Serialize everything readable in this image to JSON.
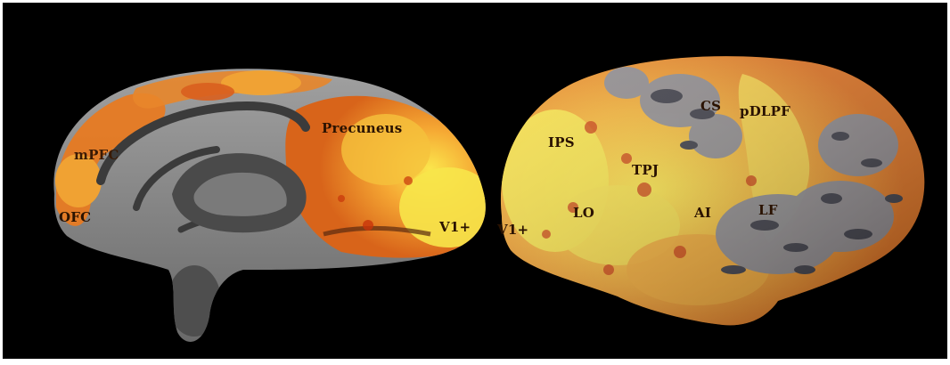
{
  "colors": {
    "background": "#000000",
    "frame": "#ffffff",
    "cortex_light": "#8f8f8f",
    "sulcus_dark": "#3a3a3a",
    "activation_red": "#c8340a",
    "activation_orange": "#f2902a",
    "activation_yellow": "#f5e84a",
    "label_dark": "#2a1200",
    "label_light": "#ffe9a8"
  },
  "figure": {
    "medial_view": {
      "name": "medial-hemisphere",
      "labels": [
        "mPFC",
        "OFC",
        "Precuneus",
        "V1+"
      ]
    },
    "lateral_view": {
      "name": "lateral-hemisphere",
      "labels": [
        "V1+",
        "IPS",
        "LO",
        "TPJ",
        "AI",
        "CS",
        "pDLPF",
        "LF"
      ]
    }
  }
}
